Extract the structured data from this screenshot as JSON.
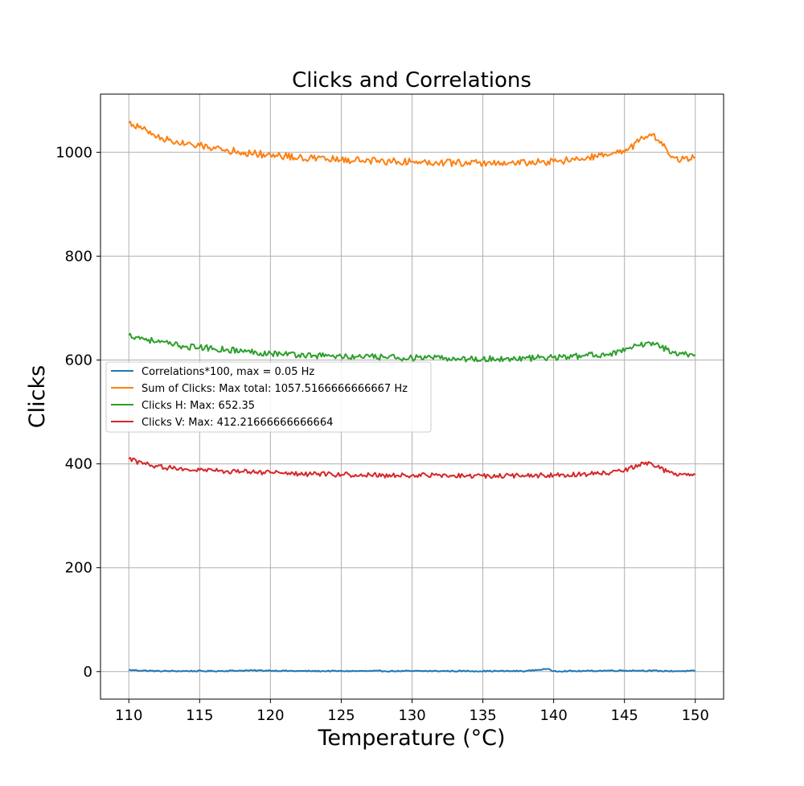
{
  "chart_data": {
    "type": "line",
    "title": "Clicks and Correlations",
    "xlabel": "Temperature (°C)",
    "ylabel": "Clicks",
    "xlim": [
      108,
      152
    ],
    "ylim": [
      -53,
      1112
    ],
    "xticks": [
      110,
      115,
      120,
      125,
      130,
      135,
      140,
      145,
      150
    ],
    "yticks": [
      0,
      200,
      400,
      600,
      800,
      1000
    ],
    "grid": true,
    "legend_position": "center-left",
    "series": [
      {
        "name": "Correlations*100, max = 0.05 Hz",
        "color": "#1f77b4",
        "x": [
          110,
          112,
          114,
          116,
          118,
          120,
          122,
          124,
          126,
          128,
          130,
          132,
          134,
          136,
          138,
          139.5,
          140,
          142,
          144,
          146,
          148,
          150
        ],
        "y": [
          3,
          1,
          1,
          1,
          2,
          2,
          1,
          1,
          1,
          1,
          1,
          1,
          1,
          1,
          1,
          5,
          1,
          1,
          2,
          2,
          1,
          1
        ]
      },
      {
        "name": "Sum of Clicks: Max total: 1057.5166666666667 Hz",
        "color": "#ff7f0e",
        "x": [
          110,
          111,
          112,
          113,
          114,
          115,
          116,
          117,
          118,
          119,
          120,
          121,
          122,
          123,
          124,
          125,
          126,
          127,
          128,
          129,
          130,
          131,
          132,
          133,
          134,
          135,
          136,
          137,
          138,
          139,
          140,
          141,
          142,
          143,
          144,
          145,
          146,
          146.5,
          147,
          147.5,
          148,
          148.5,
          149,
          150
        ],
        "y": [
          1057,
          1045,
          1030,
          1022,
          1015,
          1012,
          1010,
          1004,
          1000,
          997,
          995,
          993,
          990,
          988,
          987,
          985,
          985,
          984,
          983,
          982,
          982,
          981,
          981,
          980,
          980,
          979,
          979,
          980,
          980,
          981,
          982,
          984,
          988,
          992,
          996,
          1000,
          1020,
          1030,
          1035,
          1018,
          1005,
          990,
          985,
          990
        ]
      },
      {
        "name": "Clicks H: Max: 652.35",
        "color": "#2ca02c",
        "x": [
          110,
          111,
          112,
          113,
          114,
          115,
          116,
          117,
          118,
          119,
          120,
          121,
          122,
          123,
          124,
          125,
          126,
          127,
          128,
          129,
          130,
          131,
          132,
          133,
          134,
          135,
          136,
          137,
          138,
          139,
          140,
          141,
          142,
          143,
          144,
          145,
          146,
          147,
          148,
          149,
          150
        ],
        "y": [
          648,
          642,
          635,
          630,
          626,
          624,
          622,
          620,
          617,
          615,
          613,
          612,
          610,
          609,
          608,
          607,
          606,
          606,
          605,
          605,
          604,
          604,
          603,
          603,
          602,
          602,
          602,
          603,
          603,
          604,
          605,
          606,
          608,
          610,
          613,
          617,
          628,
          634,
          620,
          612,
          610
        ]
      },
      {
        "name": "Clicks V: Max: 412.21666666666664",
        "color": "#d62728",
        "x": [
          110,
          111,
          112,
          113,
          114,
          115,
          116,
          117,
          118,
          119,
          120,
          121,
          122,
          123,
          124,
          125,
          126,
          127,
          128,
          129,
          130,
          131,
          132,
          133,
          134,
          135,
          136,
          137,
          138,
          139,
          140,
          141,
          142,
          143,
          144,
          145,
          146,
          146.5,
          147,
          148,
          149,
          150
        ],
        "y": [
          410,
          400,
          395,
          392,
          390,
          388,
          387,
          386,
          385,
          384,
          383,
          382,
          381,
          380,
          380,
          379,
          379,
          379,
          378,
          378,
          378,
          378,
          378,
          377,
          377,
          377,
          377,
          377,
          377,
          378,
          378,
          379,
          380,
          381,
          383,
          387,
          398,
          403,
          398,
          385,
          380,
          379
        ]
      }
    ]
  }
}
